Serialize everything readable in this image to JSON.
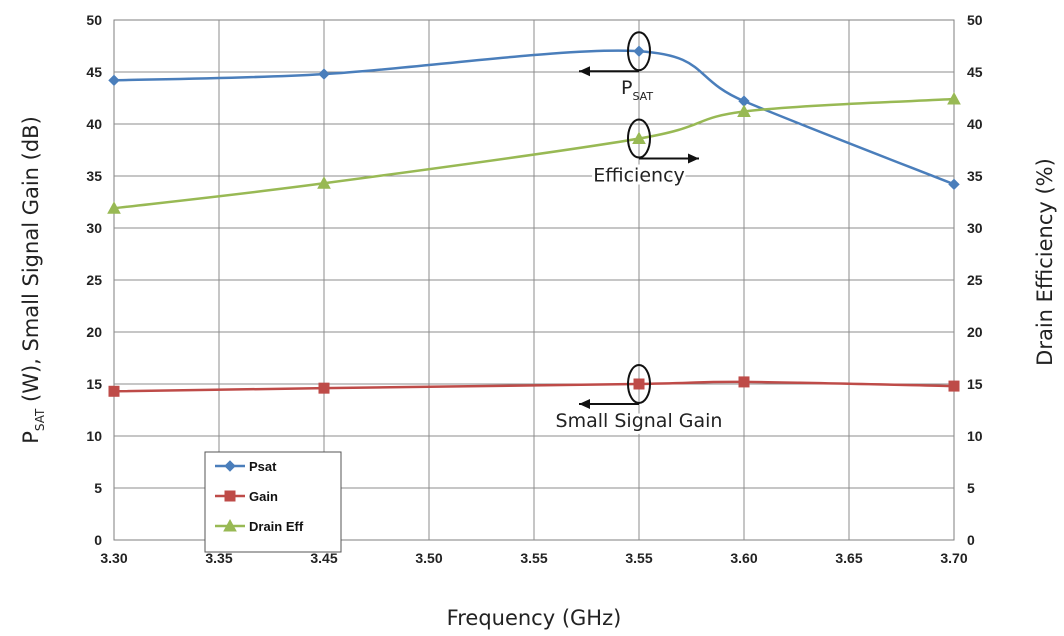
{
  "chart_data": {
    "type": "line",
    "x_tick_labels": [
      "3.30",
      "3.35",
      "3.45",
      "3.50",
      "3.55",
      "3.55",
      "3.60",
      "3.65",
      "3.70"
    ],
    "xlabel": "Frequency (GHz)",
    "ylabel_left": {
      "main": "P",
      "sub": "SAT",
      "rest": " (W), Small Signal Gain (dB)"
    },
    "ylabel_right": "Drain Efficiency (%)",
    "ylim_left": [
      0,
      50
    ],
    "ylim_right": [
      0,
      50
    ],
    "y_ticks_left": [
      "0",
      "5",
      "10",
      "15",
      "20",
      "25",
      "30",
      "35",
      "40",
      "45",
      "50"
    ],
    "y_ticks_right": [
      "0",
      "5",
      "10",
      "15",
      "20",
      "25",
      "30",
      "35",
      "40",
      "45",
      "50"
    ],
    "grid": true,
    "legend_position": "bottom-left",
    "series": [
      {
        "name": "Psat",
        "axis": "left",
        "color": "#4a7ebb",
        "marker": "diamond",
        "x": [
          "3.30",
          "3.45",
          "3.55",
          "3.60",
          "3.70"
        ],
        "values": [
          44.2,
          44.8,
          47.0,
          42.2,
          34.2
        ]
      },
      {
        "name": "Gain",
        "axis": "left",
        "color": "#be4b48",
        "marker": "square",
        "x": [
          "3.30",
          "3.45",
          "3.55",
          "3.60",
          "3.70"
        ],
        "values": [
          14.3,
          14.6,
          15.0,
          15.2,
          14.8
        ]
      },
      {
        "name": "Drain Eff",
        "axis": "right",
        "color": "#98b954",
        "marker": "triangle",
        "x": [
          "3.30",
          "3.45",
          "3.55",
          "3.60",
          "3.70"
        ],
        "values": [
          31.9,
          34.3,
          38.6,
          41.2,
          42.4
        ]
      }
    ],
    "annotations": [
      {
        "main": "P",
        "sub": "SAT",
        "target_series": "Psat",
        "arrow_direction": "left"
      },
      {
        "main": "Efficiency",
        "sub": "",
        "target_series": "Drain Eff",
        "arrow_direction": "right"
      },
      {
        "main": "Small Signal Gain",
        "sub": "",
        "target_series": "Gain",
        "arrow_direction": "left"
      }
    ]
  }
}
